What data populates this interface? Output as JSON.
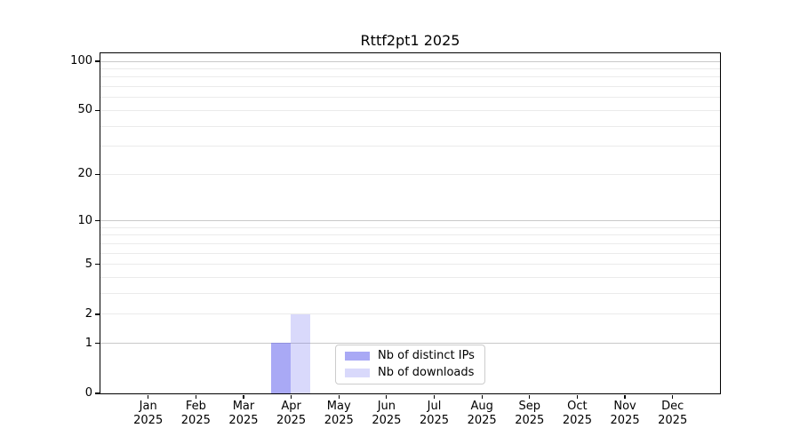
{
  "title": "Rttf2pt1 2025",
  "colors": {
    "background": "#ffffff",
    "spine": "#000000",
    "tick_label": "#000000",
    "grid_major": "#c9c9c9",
    "grid_minor": "#ebebeb",
    "bar_distinct_ips": "rgba(102,102,238,0.56)",
    "bar_downloads": "rgba(102,102,238,0.25)",
    "legend_border": "#cccccc"
  },
  "legend": {
    "items": [
      {
        "label": "Nb of distinct IPs",
        "color": "rgba(102,102,238,0.56)"
      },
      {
        "label": "Nb of downloads",
        "color": "rgba(102,102,238,0.25)"
      }
    ]
  },
  "chart_data": {
    "type": "bar",
    "title": "Rttf2pt1 2025",
    "categories": [
      "Jan",
      "Feb",
      "Mar",
      "Apr",
      "May",
      "Jun",
      "Jul",
      "Aug",
      "Sep",
      "Oct",
      "Nov",
      "Dec"
    ],
    "year": "2025",
    "series": [
      {
        "name": "Nb of distinct IPs",
        "values": [
          0,
          0,
          0,
          1,
          0,
          0,
          0,
          0,
          0,
          0,
          0,
          0
        ]
      },
      {
        "name": "Nb of downloads",
        "values": [
          0,
          0,
          0,
          2,
          0,
          0,
          0,
          0,
          0,
          0,
          0,
          0
        ]
      }
    ],
    "yscale": "log1p",
    "ylim": [
      0,
      112
    ],
    "yticks": [
      0,
      1,
      2,
      5,
      10,
      20,
      50,
      100
    ],
    "grid_major": [
      1,
      10,
      100
    ],
    "grid_minor": [
      2,
      3,
      4,
      5,
      6,
      7,
      8,
      9,
      20,
      30,
      40,
      50,
      60,
      70,
      80,
      90
    ],
    "grid": true,
    "legend_position": "inside lower center-right"
  }
}
